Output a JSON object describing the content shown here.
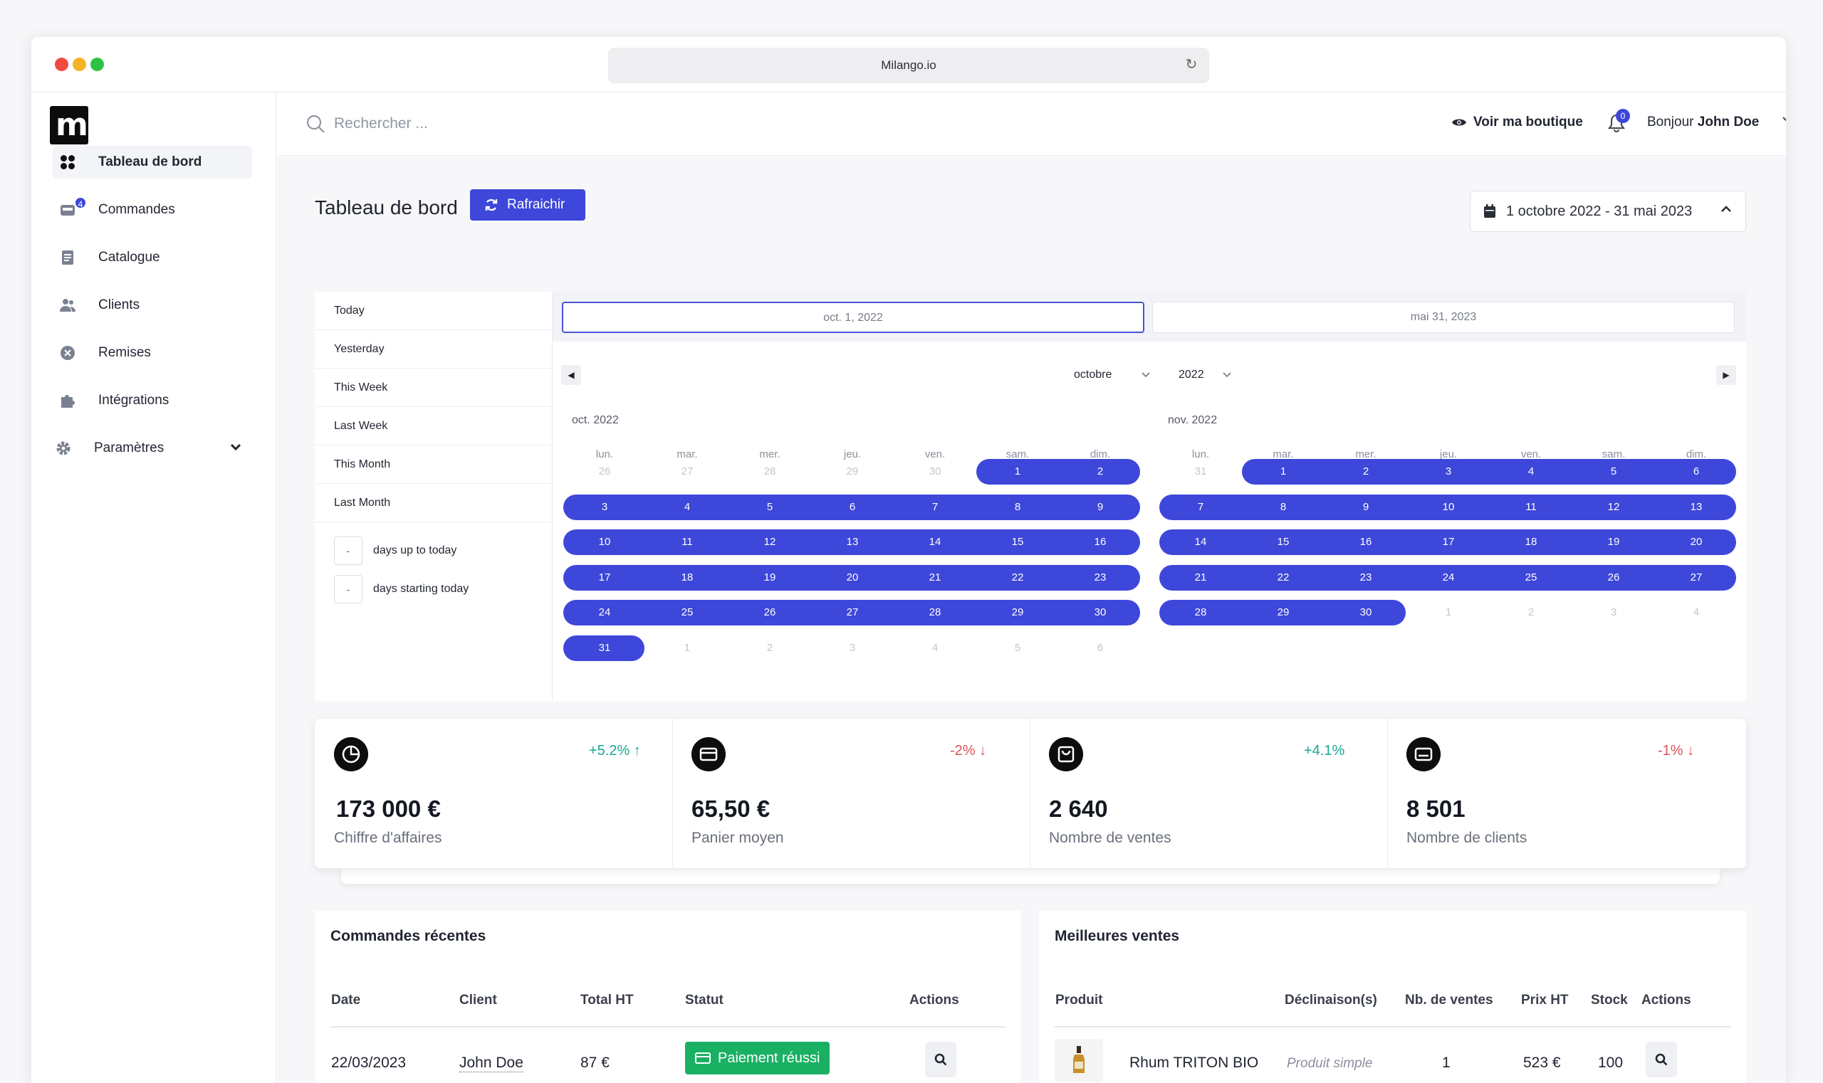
{
  "browser": {
    "url": "Milango.io"
  },
  "logo": {
    "letter": "m"
  },
  "sidebar": {
    "items": [
      {
        "label": "Tableau de bord",
        "icon": "grid-icon",
        "active": true
      },
      {
        "label": "Commandes",
        "icon": "inbox-icon",
        "badge": "4"
      },
      {
        "label": "Catalogue",
        "icon": "document-icon"
      },
      {
        "label": "Clients",
        "icon": "users-icon"
      },
      {
        "label": "Remises",
        "icon": "discount-icon"
      },
      {
        "label": "Intégrations",
        "icon": "puzzle-icon"
      },
      {
        "label": "Paramètres",
        "icon": "gear-icon"
      }
    ]
  },
  "topbar": {
    "search_placeholder": "Rechercher ...",
    "voir_label": "Voir ma boutique",
    "notifications_count": "0",
    "greeting": "Bonjour",
    "user_name": "John Doe"
  },
  "page": {
    "title": "Tableau de bord",
    "refresh_label": "Rafraichir",
    "date_range": "1 octobre 2022 - 31 mai 2023"
  },
  "picker": {
    "presets": [
      "Today",
      "Yesterday",
      "This Week",
      "Last Week",
      "This Month",
      "Last Month"
    ],
    "relative": [
      {
        "value": "-",
        "label": "days up to today"
      },
      {
        "value": "-",
        "label": "days starting today"
      }
    ],
    "start_date": "oct. 1, 2022",
    "end_date": "mai 31, 2023",
    "month_select": "octobre",
    "year_select": "2022",
    "weekdays": [
      "lun.",
      "mar.",
      "mer.",
      "jeu.",
      "ven.",
      "sam.",
      "dim."
    ],
    "months": [
      {
        "title": "oct. 2022",
        "weeks": [
          [
            "26",
            "27",
            "28",
            "29",
            "30",
            "1",
            "2"
          ],
          [
            "3",
            "4",
            "5",
            "6",
            "7",
            "8",
            "9"
          ],
          [
            "10",
            "11",
            "12",
            "13",
            "14",
            "15",
            "16"
          ],
          [
            "17",
            "18",
            "19",
            "20",
            "21",
            "22",
            "23"
          ],
          [
            "24",
            "25",
            "26",
            "27",
            "28",
            "29",
            "30"
          ],
          [
            "31",
            "1",
            "2",
            "3",
            "4",
            "5",
            "6"
          ]
        ]
      },
      {
        "title": "nov. 2022",
        "weeks": [
          [
            "31",
            "1",
            "2",
            "3",
            "4",
            "5",
            "6"
          ],
          [
            "7",
            "8",
            "9",
            "10",
            "11",
            "12",
            "13"
          ],
          [
            "14",
            "15",
            "16",
            "17",
            "18",
            "19",
            "20"
          ],
          [
            "21",
            "22",
            "23",
            "24",
            "25",
            "26",
            "27"
          ],
          [
            "28",
            "29",
            "30",
            "1",
            "2",
            "3",
            "4"
          ]
        ]
      }
    ]
  },
  "stats": [
    {
      "value": "173 000 €",
      "label": "Chiffre d'affaires",
      "change": "+5.2%",
      "direction": "up",
      "arrow": "↑",
      "icon": "pie-chart-icon"
    },
    {
      "value": "65,50 €",
      "label": "Panier moyen",
      "change": "-2%",
      "direction": "down",
      "arrow": "↓",
      "icon": "credit-card-icon"
    },
    {
      "value": "2 640",
      "label": "Nombre de ventes",
      "change": "+4.1%",
      "direction": "up",
      "arrow": "",
      "icon": "shopping-bag-icon"
    },
    {
      "value": "8 501",
      "label": "Nombre de clients",
      "change": "-1%",
      "direction": "down",
      "arrow": "↓",
      "icon": "user-card-icon"
    }
  ],
  "recent_orders": {
    "title": "Commandes récentes",
    "columns": [
      "Date",
      "Client",
      "Total HT",
      "Statut",
      "Actions"
    ],
    "rows": [
      {
        "date": "22/03/2023",
        "client": "John Doe",
        "total": "87 €",
        "status": "Paiement réussi"
      }
    ]
  },
  "best_sales": {
    "title": "Meilleures ventes",
    "columns": [
      "Produit",
      "Déclinaison(s)",
      "Nb. de ventes",
      "Prix HT",
      "Stock",
      "Actions"
    ],
    "rows": [
      {
        "product": "Rhum TRITON BIO",
        "variant": "Produit simple",
        "sales": "1",
        "price": "523 €",
        "stock": "100"
      }
    ]
  },
  "colors": {
    "accent": "#3d47d9",
    "success": "#1ab063",
    "up": "#1aa892",
    "down": "#e0515a"
  }
}
